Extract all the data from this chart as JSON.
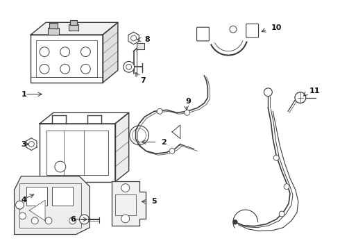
{
  "background_color": "#ffffff",
  "line_color": "#3a3a3a",
  "label_color": "#111111",
  "figsize": [
    4.9,
    3.6
  ],
  "dpi": 100
}
